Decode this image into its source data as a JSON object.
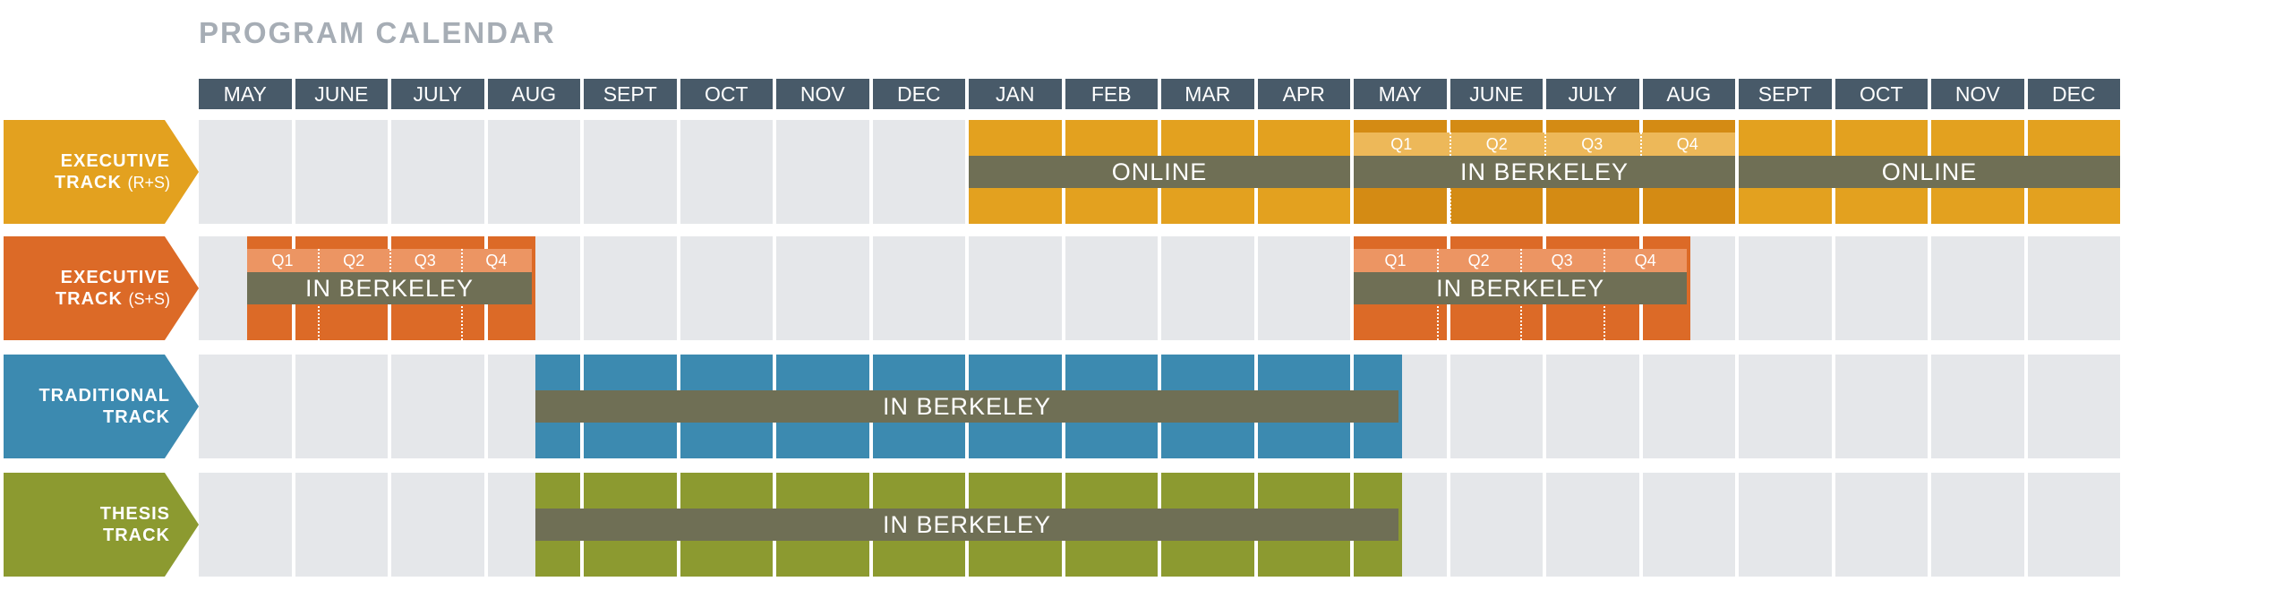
{
  "title": "PROGRAM CALENDAR",
  "months": [
    "MAY",
    "JUNE",
    "JULY",
    "AUG",
    "SEPT",
    "OCT",
    "NOV",
    "DEC",
    "JAN",
    "FEB",
    "MAR",
    "APR",
    "MAY",
    "JUNE",
    "JULY",
    "AUG",
    "SEPT",
    "OCT",
    "NOV",
    "DEC"
  ],
  "colors": {
    "header": "#485a69",
    "empty_cell": "#e5e7ea",
    "band": "#6f6f55",
    "executive_rs": "#e3a11f",
    "executive_rs_dark": "#d48b14",
    "executive_rs_quarter": "#edb859",
    "executive_ss": "#dc6a27",
    "executive_ss_quarter": "#ec9563",
    "traditional": "#3c8ab0",
    "thesis": "#8c9a30"
  },
  "tracks": [
    {
      "id": "executive-rs",
      "label_lines": [
        "EXECUTIVE",
        "TRACK"
      ],
      "label_suffix": "(R+S)",
      "color_key": "executive_rs",
      "active_months": [
        8,
        19
      ],
      "segments": [
        {
          "label": "ONLINE",
          "from": 8,
          "to": 12
        },
        {
          "label": "IN BERKELEY",
          "from": 12,
          "to": 16
        },
        {
          "label": "ONLINE",
          "from": 16,
          "to": 20
        }
      ],
      "quarters": {
        "from": 12,
        "to": 16,
        "labels": [
          "Q1",
          "Q2",
          "Q3",
          "Q4"
        ]
      }
    },
    {
      "id": "executive-ss",
      "label_lines": [
        "EXECUTIVE",
        "TRACK"
      ],
      "label_suffix": "(S+S)",
      "color_key": "executive_ss",
      "segments": [
        {
          "label": "IN BERKELEY",
          "from": 0.5,
          "to": 3.5
        },
        {
          "label": "IN BERKELEY",
          "from": 12,
          "to": 15.5
        }
      ],
      "quarter_blocks": [
        {
          "from": 0.5,
          "to": 3.5,
          "labels": [
            "Q1",
            "Q2",
            "Q3",
            "Q4"
          ]
        },
        {
          "from": 12,
          "to": 15.5,
          "labels": [
            "Q1",
            "Q2",
            "Q3",
            "Q4"
          ]
        }
      ]
    },
    {
      "id": "traditional",
      "label_lines": [
        "TRADITIONAL",
        "TRACK"
      ],
      "label_suffix": "",
      "color_key": "traditional",
      "segments": [
        {
          "label": "IN BERKELEY",
          "from": 3.5,
          "to": 12.5
        }
      ]
    },
    {
      "id": "thesis",
      "label_lines": [
        "THESIS",
        "TRACK"
      ],
      "label_suffix": "",
      "color_key": "thesis",
      "segments": [
        {
          "label": "IN BERKELEY",
          "from": 3.5,
          "to": 12.5
        }
      ]
    }
  ]
}
